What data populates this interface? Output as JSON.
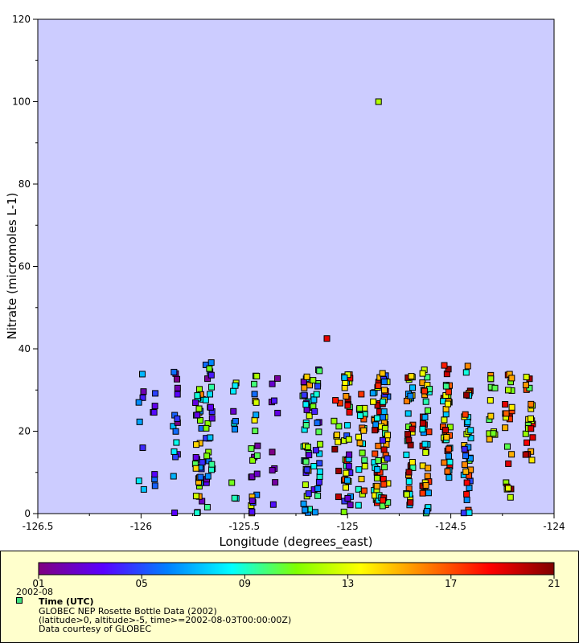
{
  "chart_data": {
    "type": "scatter",
    "xlabel": "Longitude (degrees_east)",
    "ylabel": "Nitrate (micromoles L-1)",
    "xlim": [
      -126.5,
      -124
    ],
    "ylim": [
      0,
      120
    ],
    "x_ticks": [
      "-126.5",
      "-126",
      "-125.5",
      "-125",
      "-124.5",
      "-124"
    ],
    "y_ticks": [
      "0",
      "20",
      "40",
      "60",
      "80",
      "100",
      "120"
    ],
    "grid": false,
    "plot_background": "#ccccff",
    "color_by": "Time (UTC)",
    "colorbar": {
      "tick_labels": [
        "01",
        "05",
        "09",
        "13",
        "17",
        "21"
      ],
      "tick_values": [
        1,
        5,
        9,
        13,
        17,
        21
      ],
      "range": [
        1,
        21
      ],
      "colors": [
        "#800080",
        "#5a00ff",
        "#0080ff",
        "#00ffff",
        "#80ff00",
        "#ffff00",
        "#ff8000",
        "#ff0000",
        "#800000"
      ]
    },
    "columns": [
      {
        "x": -126.0,
        "n": 8,
        "ymin": 0,
        "ymax": 34,
        "cmin": 1,
        "cmax": 10
      },
      {
        "x": -125.93,
        "n": 7,
        "ymin": 0,
        "ymax": 30,
        "cmin": 1,
        "cmax": 6
      },
      {
        "x": -125.83,
        "n": 16,
        "ymin": 0,
        "ymax": 36,
        "cmin": 1,
        "cmax": 10
      },
      {
        "x": -125.72,
        "n": 34,
        "ymin": 0,
        "ymax": 35,
        "cmin": 1,
        "cmax": 16
      },
      {
        "x": -125.67,
        "n": 28,
        "ymin": 0,
        "ymax": 37,
        "cmin": 1,
        "cmax": 12
      },
      {
        "x": -125.55,
        "n": 10,
        "ymin": 0,
        "ymax": 32,
        "cmin": 2,
        "cmax": 15
      },
      {
        "x": -125.45,
        "n": 24,
        "ymin": 0,
        "ymax": 34,
        "cmin": 1,
        "cmax": 15
      },
      {
        "x": -125.35,
        "n": 10,
        "ymin": 0,
        "ymax": 35,
        "cmin": 1,
        "cmax": 4
      },
      {
        "x": -125.2,
        "n": 40,
        "ymin": 0,
        "ymax": 34,
        "cmin": 2,
        "cmax": 16
      },
      {
        "x": -125.15,
        "n": 25,
        "ymin": 0,
        "ymax": 35,
        "cmin": 1,
        "cmax": 12
      },
      {
        "x": -125.05,
        "n": 10,
        "ymin": 0,
        "ymax": 30,
        "cmin": 8,
        "cmax": 21
      },
      {
        "x": -125.0,
        "n": 38,
        "ymin": 0,
        "ymax": 36,
        "cmin": 2,
        "cmax": 21
      },
      {
        "x": -124.93,
        "n": 22,
        "ymin": 2,
        "ymax": 34,
        "cmin": 8,
        "cmax": 18
      },
      {
        "x": -124.86,
        "n": 35,
        "ymin": 2,
        "ymax": 34,
        "cmin": 6,
        "cmax": 21
      },
      {
        "x": -124.82,
        "n": 42,
        "ymin": 0,
        "ymax": 35,
        "cmin": 4,
        "cmax": 21
      },
      {
        "x": -124.7,
        "n": 40,
        "ymin": 2,
        "ymax": 35,
        "cmin": 6,
        "cmax": 21
      },
      {
        "x": -124.62,
        "n": 42,
        "ymin": 0,
        "ymax": 36,
        "cmin": 6,
        "cmax": 21
      },
      {
        "x": -124.52,
        "n": 38,
        "ymin": 7,
        "ymax": 36,
        "cmin": 6,
        "cmax": 21
      },
      {
        "x": -124.42,
        "n": 38,
        "ymin": 0,
        "ymax": 36,
        "cmin": 1,
        "cmax": 21
      },
      {
        "x": -124.3,
        "n": 14,
        "ymin": 17,
        "ymax": 35,
        "cmin": 10,
        "cmax": 16
      },
      {
        "x": -124.22,
        "n": 24,
        "ymin": 2,
        "ymax": 34,
        "cmin": 10,
        "cmax": 21
      },
      {
        "x": -124.12,
        "n": 22,
        "ymin": 12,
        "ymax": 34,
        "cmin": 10,
        "cmax": 21
      }
    ],
    "outliers": [
      {
        "x": -124.85,
        "y": 100,
        "t": 12
      },
      {
        "x": -125.1,
        "y": 42.5,
        "t": 19
      }
    ]
  },
  "legend": {
    "date_label": "2002-08",
    "variable": "Time (UTC)",
    "dataset": "GLOBEC NEP Rosette Bottle Data (2002)",
    "constraints": "(latitude>0, altitude>-5, time>=2002-08-03T00:00:00Z)",
    "credit": "Data courtesy of GLOBEC",
    "marker_color": "#40e080"
  }
}
